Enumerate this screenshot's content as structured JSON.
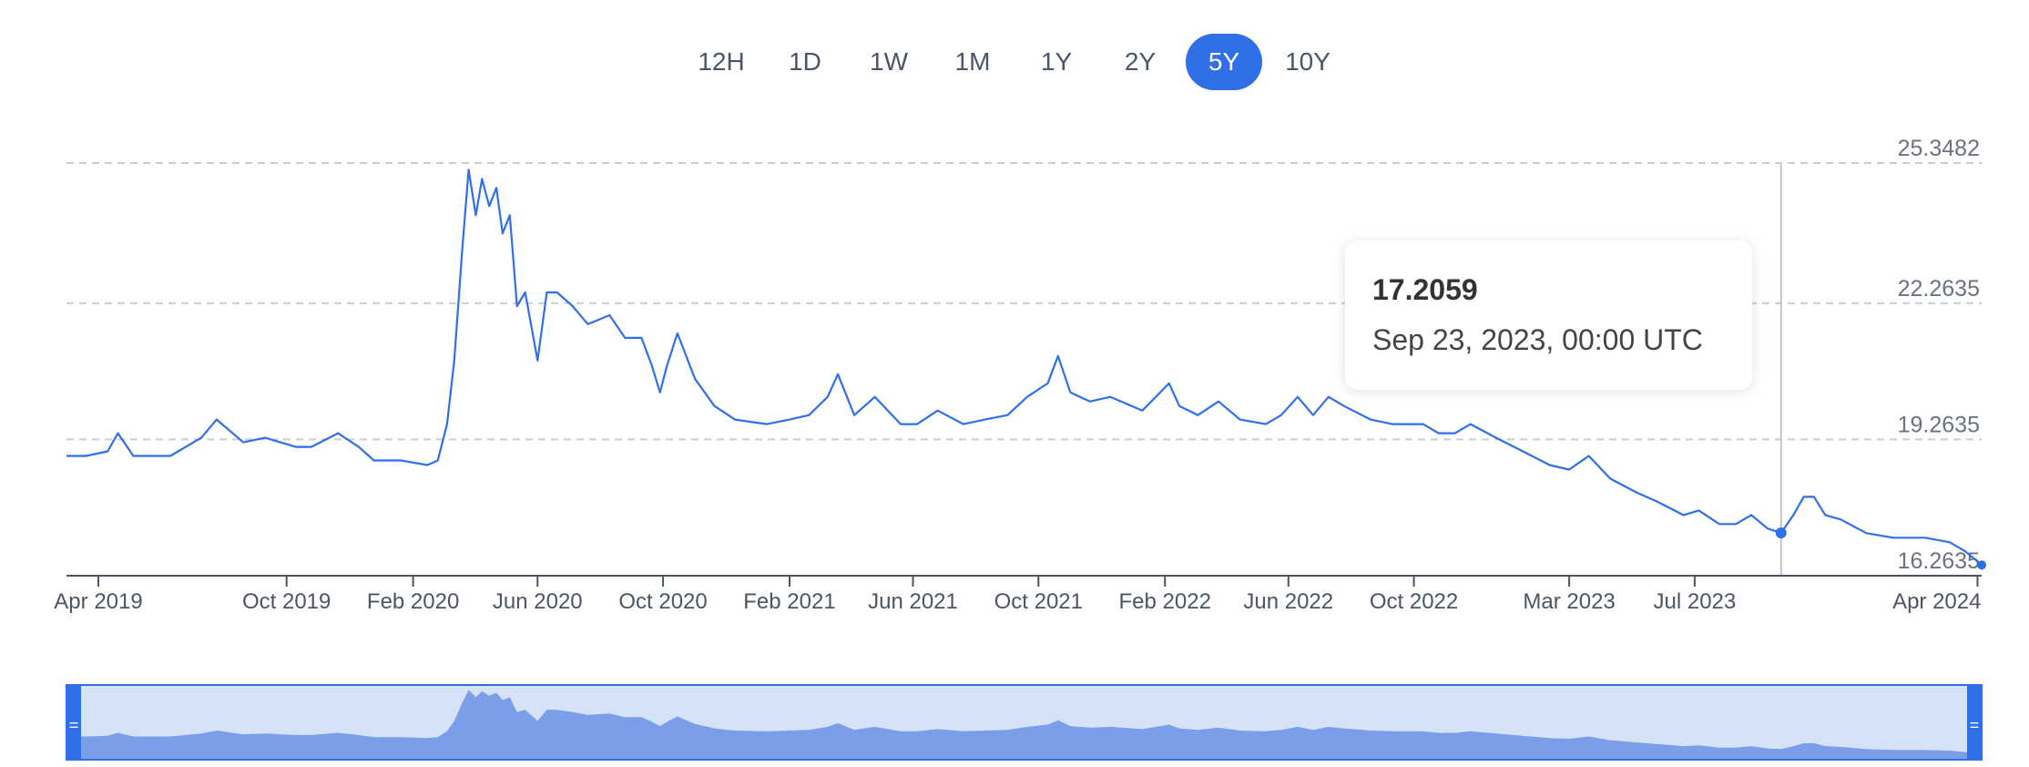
{
  "range_selector": {
    "options": [
      "12H",
      "1D",
      "1W",
      "1M",
      "1Y",
      "2Y",
      "5Y",
      "10Y"
    ],
    "active": "5Y"
  },
  "tooltip": {
    "value": "17.2059",
    "date": "Sep 23, 2023, 00:00 UTC"
  },
  "colors": {
    "line": "#2f6fe8",
    "active_button": "#2f6fe8",
    "navigator_fill": "#7a9fe8",
    "navigator_bg": "#d6e2f8"
  },
  "chart_data": {
    "type": "line",
    "title": "",
    "xlabel": "",
    "ylabel": "",
    "y_ticks": [
      "25.3482",
      "22.2635",
      "19.2635",
      "16.2635"
    ],
    "y_tick_values": [
      25.3482,
      22.2635,
      19.2635,
      16.2635
    ],
    "x_ticks": [
      "Apr 2019",
      "Oct 2019",
      "Feb 2020",
      "Jun 2020",
      "Oct 2020",
      "Feb 2021",
      "Jun 2021",
      "Oct 2021",
      "Feb 2022",
      "Jun 2022",
      "Oct 2022",
      "Mar 2023",
      "Jul 2023",
      "Apr 2024"
    ],
    "x_tick_dates": [
      "2019-04-01",
      "2019-10-01",
      "2020-02-01",
      "2020-06-01",
      "2020-10-01",
      "2021-02-01",
      "2021-06-01",
      "2021-10-01",
      "2022-02-01",
      "2022-06-01",
      "2022-10-01",
      "2023-03-01",
      "2023-07-01",
      "2024-04-01"
    ],
    "xlim": [
      "2019-03-01",
      "2024-04-05"
    ],
    "ylim": [
      16.2635,
      25.3482
    ],
    "grid": "horizontal-dashed",
    "highlight": {
      "x": "2023-09-23",
      "y": 17.2059
    },
    "series": [
      {
        "x": [
          "2019-03-01",
          "2019-03-20",
          "2019-04-10",
          "2019-04-20",
          "2019-05-05",
          "2019-05-25",
          "2019-06-10",
          "2019-07-10",
          "2019-07-25",
          "2019-08-20",
          "2019-09-10",
          "2019-10-10",
          "2019-10-25",
          "2019-11-20",
          "2019-12-10",
          "2019-12-25",
          "2020-01-20",
          "2020-02-15",
          "2020-02-25",
          "2020-03-05",
          "2020-03-12",
          "2020-03-20",
          "2020-03-26",
          "2020-04-02",
          "2020-04-08",
          "2020-04-15",
          "2020-04-22",
          "2020-04-28",
          "2020-05-05",
          "2020-05-12",
          "2020-05-20",
          "2020-06-01",
          "2020-06-10",
          "2020-06-20",
          "2020-07-05",
          "2020-07-20",
          "2020-08-10",
          "2020-08-25",
          "2020-09-10",
          "2020-09-20",
          "2020-09-28",
          "2020-10-05",
          "2020-10-15",
          "2020-11-01",
          "2020-11-20",
          "2020-12-10",
          "2021-01-10",
          "2021-02-01",
          "2021-02-20",
          "2021-03-10",
          "2021-03-20",
          "2021-04-05",
          "2021-04-25",
          "2021-05-20",
          "2021-06-05",
          "2021-06-25",
          "2021-07-20",
          "2021-08-10",
          "2021-09-01",
          "2021-09-20",
          "2021-10-10",
          "2021-10-20",
          "2021-11-01",
          "2021-11-20",
          "2021-12-10",
          "2022-01-10",
          "2022-02-05",
          "2022-02-15",
          "2022-03-05",
          "2022-03-25",
          "2022-04-15",
          "2022-05-10",
          "2022-05-25",
          "2022-06-10",
          "2022-06-25",
          "2022-07-10",
          "2022-07-25",
          "2022-08-20",
          "2022-09-10",
          "2022-09-25",
          "2022-10-10",
          "2022-10-25",
          "2022-11-10",
          "2022-11-25",
          "2022-12-20",
          "2023-01-15",
          "2023-02-10",
          "2023-03-01",
          "2023-03-20",
          "2023-04-10",
          "2023-05-05",
          "2023-05-25",
          "2023-06-20",
          "2023-07-05",
          "2023-07-25",
          "2023-08-10",
          "2023-08-25",
          "2023-09-10",
          "2023-09-23",
          "2023-10-05",
          "2023-10-15",
          "2023-10-25",
          "2023-11-05",
          "2023-11-20",
          "2023-12-15",
          "2024-01-10",
          "2024-02-10",
          "2024-03-05",
          "2024-03-20",
          "2024-04-05"
        ],
        "values": [
          18.9,
          18.9,
          19.0,
          19.4,
          18.9,
          18.9,
          18.9,
          19.3,
          19.7,
          19.2,
          19.3,
          19.1,
          19.1,
          19.4,
          19.1,
          18.8,
          18.8,
          18.7,
          18.8,
          19.6,
          21.0,
          23.5,
          25.2,
          24.2,
          25.0,
          24.4,
          24.8,
          23.8,
          24.2,
          22.2,
          22.5,
          21.0,
          22.5,
          22.5,
          22.2,
          21.8,
          22.0,
          21.5,
          21.5,
          20.9,
          20.3,
          20.9,
          21.6,
          20.6,
          20.0,
          19.7,
          19.6,
          19.7,
          19.8,
          20.2,
          20.7,
          19.8,
          20.2,
          19.6,
          19.6,
          19.9,
          19.6,
          19.7,
          19.8,
          20.2,
          20.5,
          21.1,
          20.3,
          20.1,
          20.2,
          19.9,
          20.5,
          20.0,
          19.8,
          20.1,
          19.7,
          19.6,
          19.8,
          20.2,
          19.8,
          20.2,
          20.0,
          19.7,
          19.6,
          19.6,
          19.6,
          19.4,
          19.4,
          19.6,
          19.3,
          19.0,
          18.7,
          18.6,
          18.9,
          18.4,
          18.1,
          17.9,
          17.6,
          17.7,
          17.4,
          17.4,
          17.6,
          17.3,
          17.2059,
          17.6,
          18.0,
          18.0,
          17.6,
          17.5,
          17.2,
          17.1,
          17.1,
          17.0,
          16.8,
          16.5
        ]
      }
    ]
  }
}
